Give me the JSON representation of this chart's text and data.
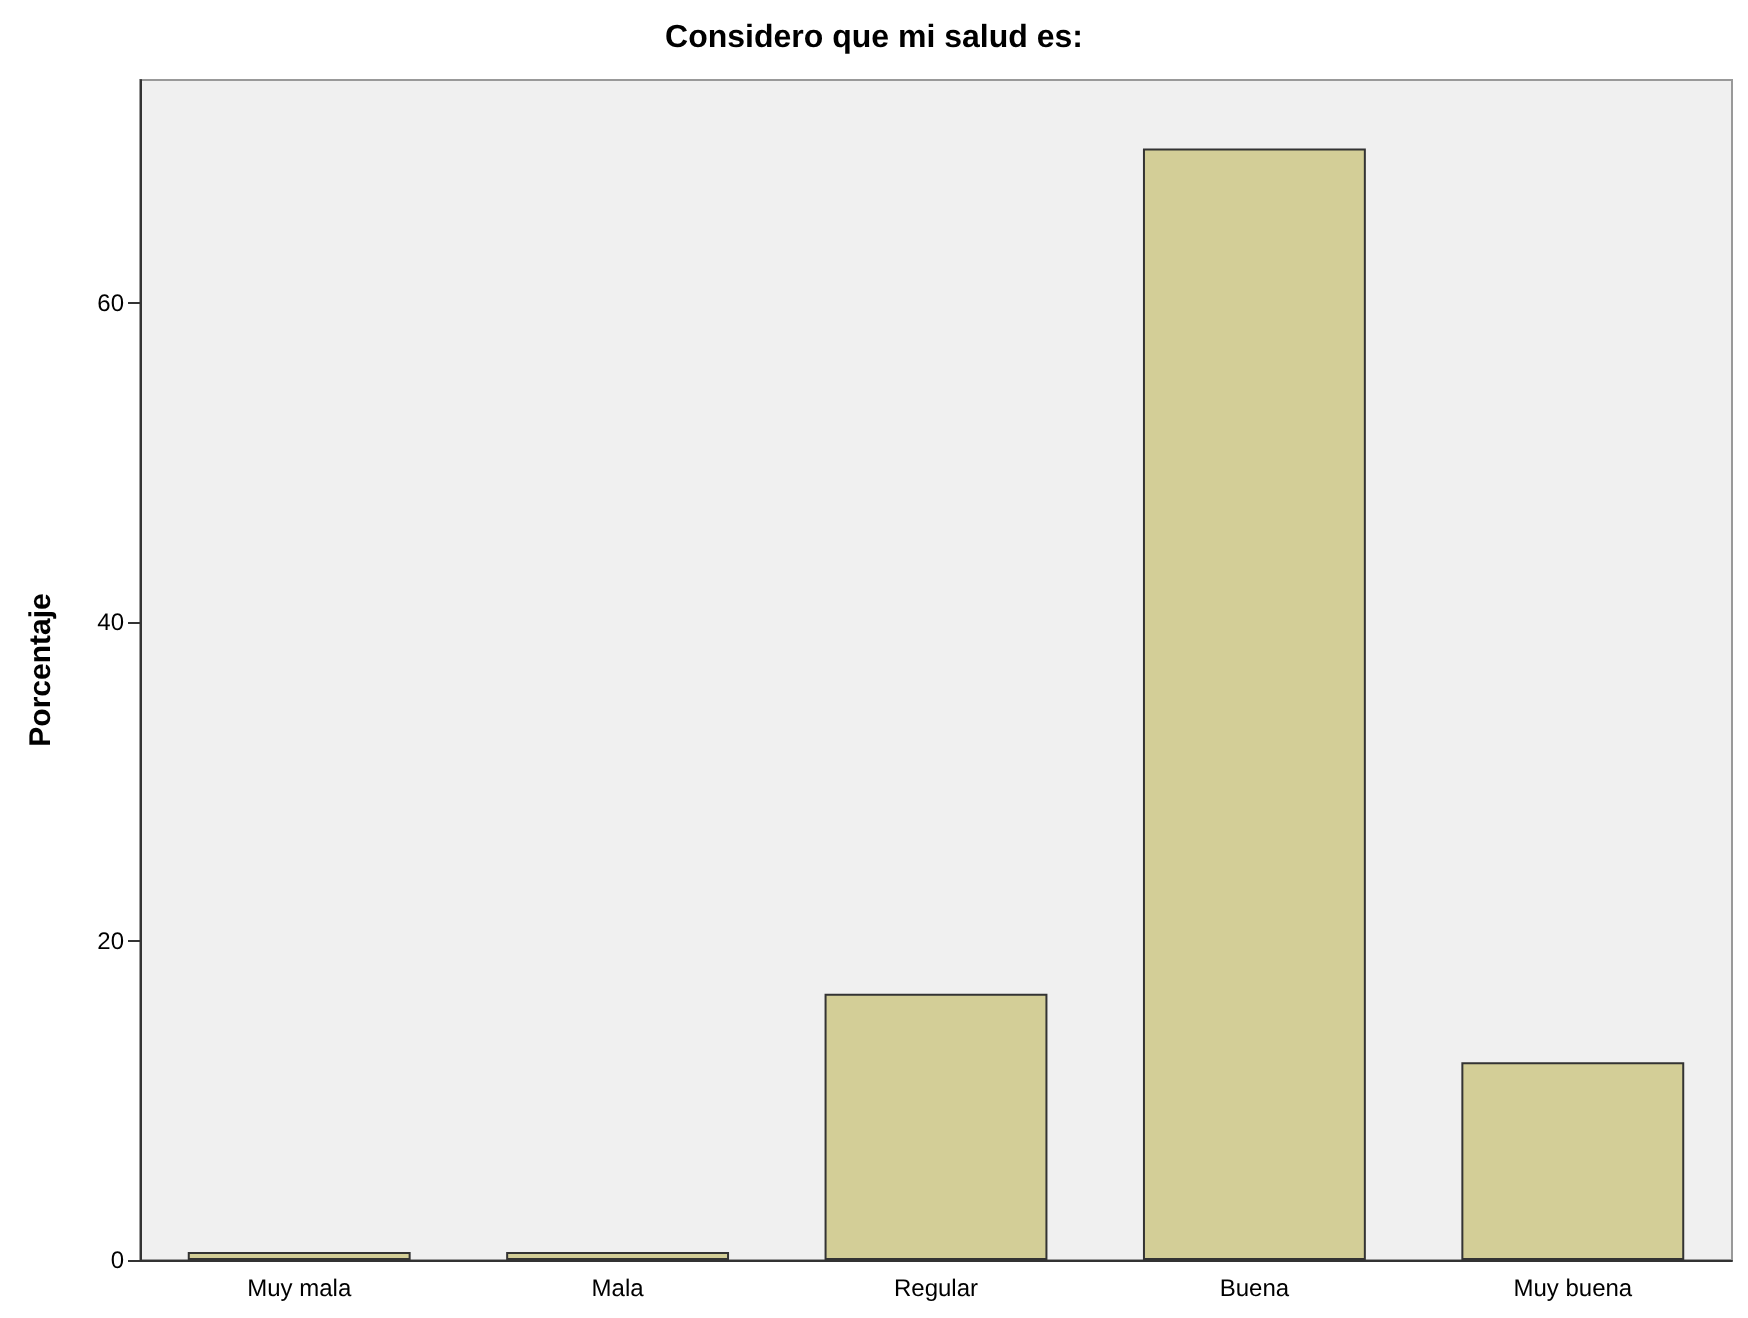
{
  "chart_data": {
    "type": "bar",
    "title": "Considero que mi salud es:",
    "ylabel": "Porcentaje",
    "categories": [
      "Muy mala",
      "Mala",
      "Regular",
      "Buena",
      "Muy buena"
    ],
    "values": [
      0.5,
      0.5,
      16.7,
      69.7,
      12.4
    ],
    "color": "#d3ce97",
    "ylim": [
      0,
      74
    ],
    "yticks": [
      0,
      20,
      40,
      60
    ],
    "grid": false
  }
}
